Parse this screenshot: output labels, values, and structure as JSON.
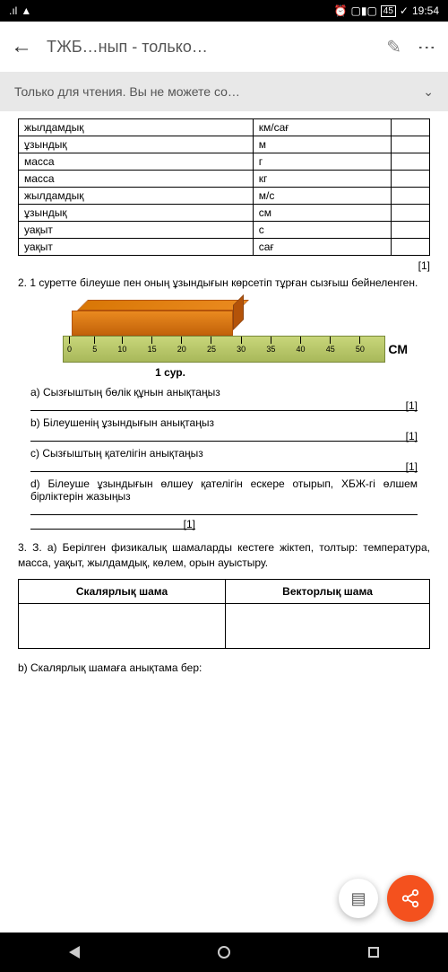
{
  "status": {
    "signal": "⁴ᴳ ₊₊",
    "wifi": "📶",
    "alarm": "⏰",
    "vibrate": "📳",
    "battery_text": "45",
    "leaf": "🍃",
    "time": "19:54"
  },
  "header": {
    "title": "ТЖБ…нып - только…"
  },
  "info_bar": {
    "text": "Только для чтения. Вы не можете со…"
  },
  "table1": {
    "rows": [
      [
        "жылдамдық",
        "км/сағ",
        ""
      ],
      [
        "ұзындық",
        "м",
        ""
      ],
      [
        "масса",
        "г",
        ""
      ],
      [
        "масса",
        "кг",
        ""
      ],
      [
        "жылдамдық",
        "м/с",
        ""
      ],
      [
        "ұзындық",
        "см",
        ""
      ],
      [
        "уақыт",
        "с",
        ""
      ],
      [
        "уақыт",
        "сағ",
        ""
      ]
    ]
  },
  "mark1": "[1]",
  "q2": {
    "text": "2. 1 суретте білеуше пен оның ұзындығын көрсетіп тұрған сызғыш бейнеленген.",
    "ruler_marks": [
      "0",
      "5",
      "10",
      "15",
      "20",
      "25",
      "30",
      "35",
      "40",
      "45",
      "50"
    ],
    "ruler_unit": "СМ",
    "fig_label": "1 сур.",
    "a": "a) Сызғыштың бөлік құнын анықтаңыз",
    "a_mark": "[1]",
    "b": "b) Білеушенің ұзындығын анықтаңыз",
    "b_mark": "[1]",
    "c": "c) Сызғыштың қателігін анықтаңыз",
    "c_mark": "[1]",
    "d": "d) Білеуше ұзындығын өлшеу қателігін ескере отырып, ХБЖ-гі өлшем бірліктерін жазыңыз",
    "d_mark": "[1]"
  },
  "q3": {
    "text": "3. З. а)   Берілген физикалық шамаларды кестеге жіктеп, толтыр: температура, масса, уақыт, жылдамдық, көлем, орын ауыстыру.",
    "col1": "Скалярлық шама",
    "col2": "Векторлық шама",
    "b": "b) Скалярлық шамаға анықтама бер:"
  },
  "colors": {
    "block_main": "#ea8a1f",
    "block_dark": "#c2620a",
    "block_border": "#b45309",
    "ruler_top": "#c8d67a",
    "ruler_bottom": "#a8b85a",
    "ruler_border": "#788838",
    "fab_share": "#f4511e",
    "info_bg": "#e8e8e8"
  }
}
